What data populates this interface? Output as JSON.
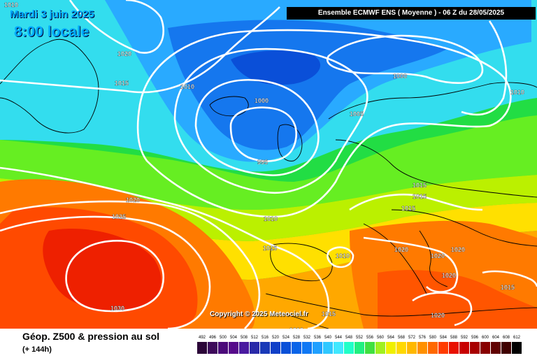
{
  "header": {
    "date": "Mardi 3 juin 2025",
    "time": "8:00 locale",
    "model_info": "Ensemble ECMWF ENS  ( Moyenne )  -  06 Z du 28/05/2025"
  },
  "copyright": "Copyright © 2025 Meteociel.fr",
  "footer": {
    "title": "Géop. Z500 & pression au sol",
    "subtitle": "(+ 144h)"
  },
  "isobar_labels": [
    "1010",
    "1020",
    "1015",
    "1010",
    "1000",
    "995",
    "1000",
    "1005",
    "1010",
    "1020",
    "1025",
    "1030",
    "1010",
    "1015",
    "1010",
    "1015",
    "1015",
    "1020",
    "1020",
    "1020",
    "1020",
    "1015",
    "1020",
    "1015",
    "1010",
    "1015"
  ],
  "scale": {
    "values": [
      "492",
      "496",
      "500",
      "504",
      "508",
      "512",
      "516",
      "520",
      "524",
      "528",
      "532",
      "536",
      "540",
      "544",
      "548",
      "552",
      "556",
      "560",
      "564",
      "568",
      "572",
      "576",
      "580",
      "584",
      "588",
      "592",
      "596",
      "600",
      "604",
      "608",
      "612"
    ],
    "colors": [
      "#2b0538",
      "#3d0a5a",
      "#4b0a7a",
      "#560a8a",
      "#4a1aa0",
      "#2a2aa8",
      "#1a3ab8",
      "#1040c8",
      "#0a50d8",
      "#0a64e8",
      "#1078f4",
      "#20a0ff",
      "#30c8ff",
      "#40e8ff",
      "#20ffc8",
      "#20f080",
      "#40e040",
      "#a0f020",
      "#f0f000",
      "#ffd800",
      "#ffb800",
      "#ff9000",
      "#ff6800",
      "#ff3c00",
      "#e81000",
      "#c80000",
      "#a80000",
      "#880000",
      "#600000",
      "#400000",
      "#000000"
    ]
  }
}
